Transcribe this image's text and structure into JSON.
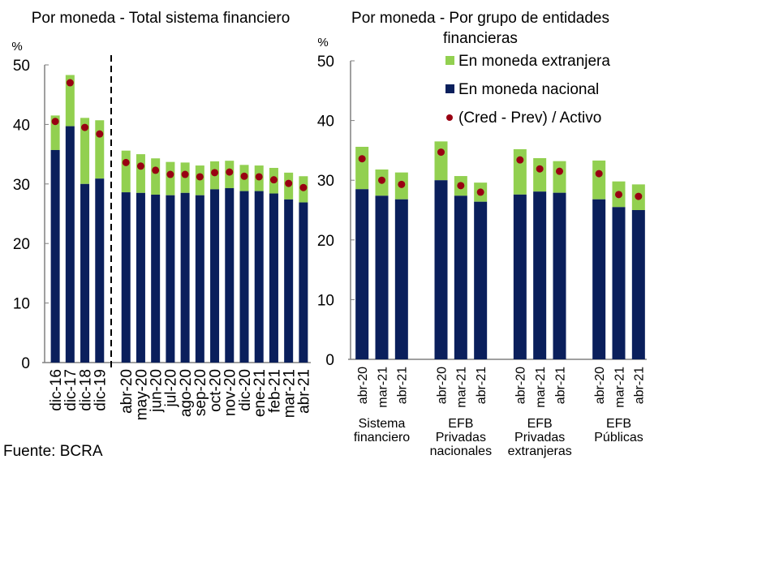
{
  "chart_data": [
    {
      "type": "bar",
      "stacked": true,
      "title": "Por moneda - Total sistema financiero",
      "ylabel": "%",
      "ylim": [
        0,
        50
      ],
      "yticks": [
        "0",
        "10",
        "20",
        "30",
        "40",
        "50"
      ],
      "grid": false,
      "separator": "dashed vertical line between dic-19 and abr-20",
      "categories": [
        "dic-16",
        "dic-17",
        "dic-18",
        "dic-19",
        "abr-20",
        "may-20",
        "jun-20",
        "jul-20",
        "ago-20",
        "sep-20",
        "oct-20",
        "nov-20",
        "dic-20",
        "ene-21",
        "feb-21",
        "mar-21",
        "abr-21"
      ],
      "series": [
        {
          "name": "En moneda nacional",
          "color": "#0a1f5c",
          "values": [
            35.7,
            39.7,
            30.0,
            30.9,
            28.6,
            28.5,
            28.2,
            28.1,
            28.5,
            28.1,
            29.1,
            29.3,
            28.8,
            28.8,
            28.4,
            27.4,
            26.9
          ]
        },
        {
          "name": "En moneda extranjera",
          "color": "#92d050",
          "values": [
            5.8,
            8.6,
            11.1,
            9.8,
            7.0,
            6.5,
            6.1,
            5.6,
            5.1,
            5.0,
            4.7,
            4.6,
            4.4,
            4.3,
            4.3,
            4.5,
            4.4
          ]
        },
        {
          "name": "(Cred - Prev) / Activo",
          "type": "scatter",
          "color": "#990012",
          "values": [
            40.5,
            47.0,
            39.5,
            38.4,
            33.6,
            33.0,
            32.3,
            31.6,
            31.6,
            31.2,
            31.9,
            32.0,
            31.3,
            31.2,
            30.7,
            30.1,
            29.4
          ]
        }
      ]
    },
    {
      "type": "bar",
      "stacked": true,
      "title": "Por moneda - Por grupo de entidades financieras",
      "title_lines": [
        "Por moneda - Por grupo de entidades",
        "financieras"
      ],
      "ylabel": "%",
      "ylim": [
        0,
        50
      ],
      "yticks": [
        "0",
        "10",
        "20",
        "30",
        "40",
        "50"
      ],
      "grid": false,
      "legend_position": "top-right",
      "groups": [
        {
          "label_lines": [
            "Sistema",
            "financiero"
          ],
          "categories": [
            "abr-20",
            "mar-21",
            "abr-21"
          ]
        },
        {
          "label_lines": [
            "EFB",
            "Privadas",
            "nacionales"
          ],
          "categories": [
            "abr-20",
            "mar-21",
            "abr-21"
          ]
        },
        {
          "label_lines": [
            "EFB",
            "Privadas",
            "extranjeras"
          ],
          "categories": [
            "abr-20",
            "mar-21",
            "abr-21"
          ]
        },
        {
          "label_lines": [
            "EFB",
            "Públicas"
          ],
          "categories": [
            "abr-20",
            "mar-21",
            "abr-21"
          ]
        }
      ],
      "series": [
        {
          "name": "En moneda nacional",
          "color": "#0a1f5c",
          "values": [
            28.5,
            27.4,
            26.8,
            30.0,
            27.4,
            26.4,
            27.6,
            28.1,
            27.9,
            26.8,
            25.5,
            25.0
          ]
        },
        {
          "name": "En moneda extranjera",
          "color": "#92d050",
          "values": [
            7.1,
            4.4,
            4.5,
            6.5,
            3.3,
            3.2,
            7.6,
            5.6,
            5.3,
            6.5,
            4.3,
            4.3
          ]
        },
        {
          "name": "(Cred - Prev) / Activo",
          "type": "scatter",
          "color": "#990012",
          "values": [
            33.6,
            30.0,
            29.3,
            34.7,
            29.1,
            28.0,
            33.4,
            31.9,
            31.5,
            31.1,
            27.6,
            27.3
          ]
        }
      ]
    }
  ],
  "legend": [
    {
      "label": "En moneda extranjera",
      "color": "#92d050",
      "marker": "square"
    },
    {
      "label": "En moneda nacional",
      "color": "#0a1f5c",
      "marker": "square"
    },
    {
      "label": "(Cred - Prev) / Activo",
      "color": "#990012",
      "marker": "circle"
    }
  ],
  "source": "Fuente: BCRA"
}
